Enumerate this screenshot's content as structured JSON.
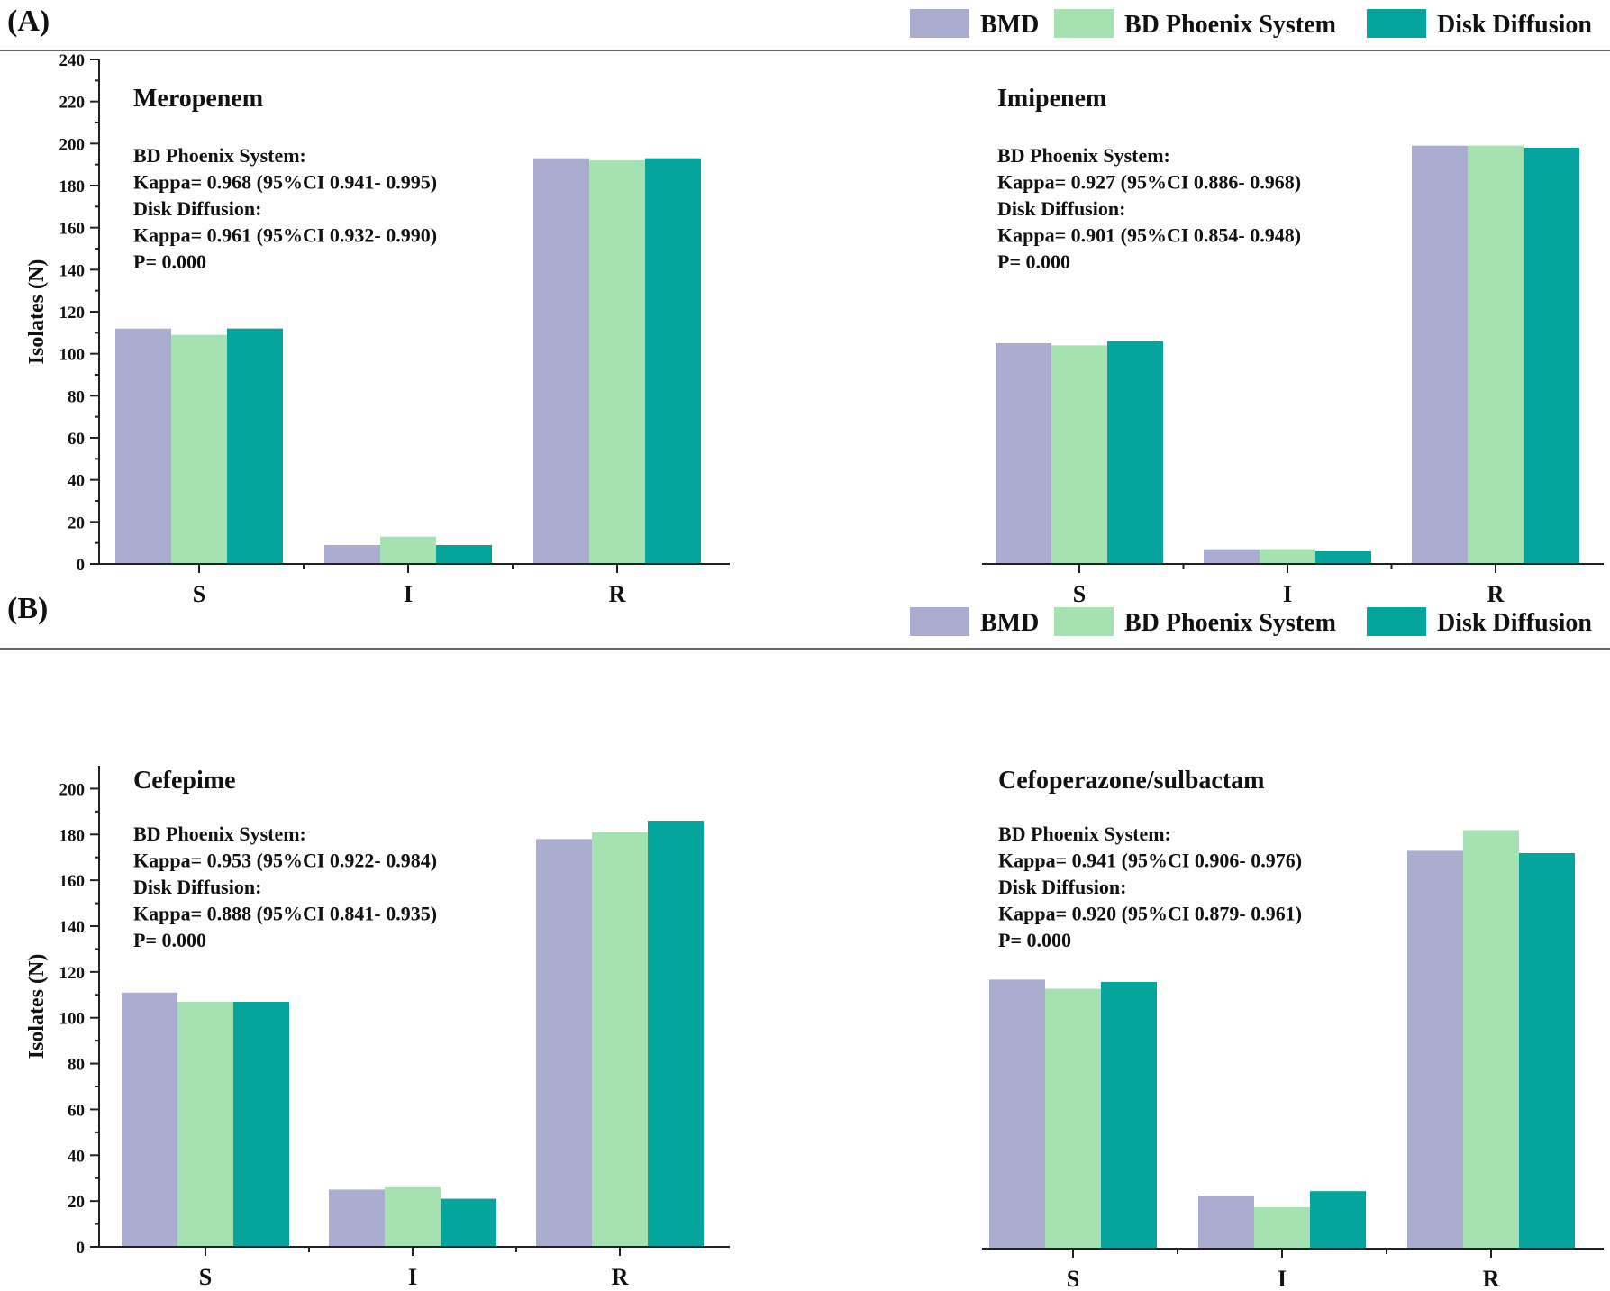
{
  "series": [
    {
      "name": "BMD",
      "color": "#aaadd0"
    },
    {
      "name": "BD Phoenix System",
      "color": "#a6e2b1"
    },
    {
      "name": "Disk Diffusion",
      "color": "#05a59e"
    }
  ],
  "panels": [
    {
      "label": "(A)",
      "ylabel": "Isolates (N)"
    },
    {
      "label": "(B)",
      "ylabel": "Isolates (N)"
    }
  ],
  "chart_data": [
    {
      "type": "bar",
      "panel": "(A)",
      "title": "Meropenem",
      "categories": [
        "S",
        "I",
        "R"
      ],
      "series": [
        {
          "name": "BMD",
          "values": [
            112,
            9,
            193
          ]
        },
        {
          "name": "BD Phoenix System",
          "values": [
            109,
            13,
            192
          ]
        },
        {
          "name": "Disk Diffusion",
          "values": [
            112,
            9,
            193
          ]
        }
      ],
      "notes": [
        "BD Phoenix System:",
        "Kappa= 0.968 (95%CI 0.941- 0.995)",
        "Disk Diffusion:",
        "Kappa= 0.961 (95%CI 0.932- 0.990)",
        "P= 0.000"
      ],
      "ylabel": "Isolates (N)",
      "ylim": [
        0,
        240
      ],
      "yticks": [
        0,
        20,
        40,
        60,
        80,
        100,
        120,
        140,
        160,
        180,
        200,
        220,
        240
      ],
      "show_yaxis": true
    },
    {
      "type": "bar",
      "panel": "(A)",
      "title": "Imipenem",
      "categories": [
        "S",
        "I",
        "R"
      ],
      "series": [
        {
          "name": "BMD",
          "values": [
            105,
            7,
            199
          ]
        },
        {
          "name": "BD Phoenix System",
          "values": [
            104,
            7,
            199
          ]
        },
        {
          "name": "Disk Diffusion",
          "values": [
            106,
            6,
            198
          ]
        }
      ],
      "notes": [
        "BD Phoenix System:",
        "Kappa= 0.927 (95%CI 0.886- 0.968)",
        "Disk Diffusion:",
        "Kappa= 0.901 (95%CI 0.854- 0.948)",
        "P= 0.000"
      ],
      "ylabel": "",
      "ylim": [
        0,
        240
      ],
      "yticks": [],
      "show_yaxis": false
    },
    {
      "type": "bar",
      "panel": "(B)",
      "title": "Cefepime",
      "categories": [
        "S",
        "I",
        "R"
      ],
      "series": [
        {
          "name": "BMD",
          "values": [
            111,
            25,
            178
          ]
        },
        {
          "name": "BD Phoenix System",
          "values": [
            107,
            26,
            181
          ]
        },
        {
          "name": "Disk Diffusion",
          "values": [
            107,
            21,
            186
          ]
        }
      ],
      "notes": [
        "BD Phoenix System:",
        "Kappa= 0.953 (95%CI 0.922- 0.984)",
        "Disk Diffusion:",
        "Kappa= 0.888 (95%CI 0.841- 0.935)",
        "P= 0.000"
      ],
      "ylabel": "Isolates (N)",
      "ylim": [
        0,
        210
      ],
      "yticks": [
        0,
        20,
        40,
        60,
        80,
        100,
        120,
        140,
        160,
        180,
        200
      ],
      "show_yaxis": true
    },
    {
      "type": "bar",
      "panel": "(B)",
      "title": "Cefoperazone/sulbactam",
      "categories": [
        "S",
        "I",
        "R"
      ],
      "series": [
        {
          "name": "BMD",
          "values": [
            117,
            23,
            173
          ]
        },
        {
          "name": "BD Phoenix System",
          "values": [
            113,
            18,
            182
          ]
        },
        {
          "name": "Disk Diffusion",
          "values": [
            116,
            25,
            172
          ]
        }
      ],
      "notes": [
        "BD Phoenix System:",
        "Kappa= 0.941 (95%CI 0.906- 0.976)",
        "Disk Diffusion:",
        "Kappa= 0.920 (95%CI 0.879- 0.961)",
        "P= 0.000"
      ],
      "ylabel": "",
      "ylim": [
        0,
        210
      ],
      "yticks": [],
      "show_yaxis": false
    }
  ]
}
